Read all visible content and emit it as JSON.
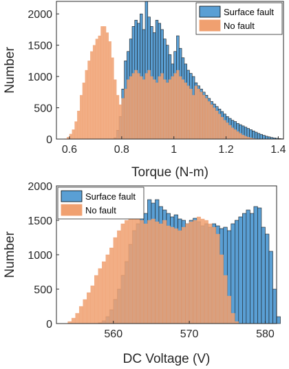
{
  "chart_data": [
    {
      "type": "bar",
      "xlabel": "Torque (N-m)",
      "ylabel": "Number",
      "xlim": [
        0.55,
        1.42
      ],
      "ylim": [
        0,
        2200
      ],
      "xticks": [
        0.6,
        0.8,
        1,
        1.2,
        1.4
      ],
      "xtick_labels": [
        "0.6",
        "0.8",
        "1",
        "1.2",
        "1.4"
      ],
      "yticks": [
        0,
        500,
        1000,
        1500,
        2000
      ],
      "ytick_labels": [
        "0",
        "500",
        "1000",
        "1500",
        "2000"
      ],
      "legend_position": "top-right",
      "grid": false,
      "series": [
        {
          "name": "Surface fault",
          "color": "#5a9fd4",
          "bin_start": 0.77,
          "bin_width": 0.01,
          "values": [
            20,
            140,
            360,
            800,
            1250,
            1400,
            1600,
            1800,
            1900,
            1850,
            2000,
            1750,
            2200,
            1950,
            1800,
            1700,
            1900,
            1850,
            1750,
            1600,
            1500,
            1350,
            1200,
            1400,
            1650,
            1450,
            1300,
            1200,
            1100,
            1050,
            1000,
            900,
            850,
            800,
            750,
            700,
            650,
            600,
            560,
            520,
            480,
            440,
            400,
            360,
            330,
            300,
            280,
            250,
            230,
            210,
            190,
            170,
            150,
            130,
            110,
            90,
            75,
            60,
            45,
            35,
            25,
            18,
            12,
            8,
            5
          ]
        },
        {
          "name": "No fault",
          "color": "#f0a070",
          "bin_start": 0.58,
          "bin_width": 0.01,
          "values": [
            5,
            30,
            80,
            150,
            280,
            450,
            700,
            900,
            1100,
            1250,
            1400,
            1500,
            1600,
            1650,
            1800,
            1800,
            1700,
            1560,
            1300,
            950,
            700,
            550,
            650,
            800,
            950,
            1000,
            1050,
            1100,
            1050,
            1000,
            950,
            1050,
            1100,
            1000,
            950,
            900,
            1000,
            1050,
            950,
            900,
            950,
            1000,
            1050,
            1100,
            1000,
            950,
            900,
            850,
            800,
            700,
            850,
            800,
            750,
            700,
            650,
            600,
            550,
            500,
            450,
            400,
            350,
            300,
            260,
            220,
            180,
            150,
            120,
            90,
            65,
            45,
            30,
            20,
            10,
            5
          ]
        }
      ]
    },
    {
      "type": "bar",
      "xlabel": "DC Voltage (V)",
      "ylabel": "Number",
      "xlim": [
        552.5,
        581.5
      ],
      "ylim": [
        0,
        2000
      ],
      "xticks": [
        560,
        570,
        580
      ],
      "xtick_labels": [
        "560",
        "570",
        "580"
      ],
      "yticks": [
        0,
        500,
        1000,
        1500,
        2000
      ],
      "ytick_labels": [
        "0",
        "500",
        "1000",
        "1500",
        "2000"
      ],
      "legend_position": "top-left",
      "grid": false,
      "series": [
        {
          "name": "Surface fault",
          "color": "#5a9fd4",
          "bin_start": 558.0,
          "bin_width": 0.5,
          "values": [
            10,
            40,
            100,
            200,
            350,
            500,
            700,
            900,
            1150,
            1350,
            1450,
            1550,
            1600,
            1800,
            1750,
            1800,
            1700,
            1650,
            1600,
            1550,
            1580,
            1520,
            1500,
            1450,
            1500,
            1530,
            1480,
            1420,
            1450,
            1400,
            1450,
            1420,
            1380,
            1400,
            1350,
            1450,
            1500,
            1550,
            1600,
            1650,
            1600,
            1700,
            1680,
            1400,
            1300,
            1050,
            500,
            100
          ]
        },
        {
          "name": "No fault",
          "color": "#f0a070",
          "bin_start": 554.0,
          "bin_width": 0.5,
          "values": [
            30,
            80,
            150,
            250,
            350,
            450,
            550,
            700,
            800,
            900,
            1000,
            1100,
            1250,
            1350,
            1450,
            1500,
            1550,
            1600,
            1650,
            1500,
            1450,
            1500,
            1520,
            1480,
            1450,
            1500,
            1420,
            1400,
            1380,
            1350,
            1400,
            1450,
            1480,
            1500,
            1550,
            1520,
            1500,
            1450,
            1400,
            1300,
            1000,
            700,
            400,
            150,
            30
          ]
        }
      ]
    }
  ]
}
